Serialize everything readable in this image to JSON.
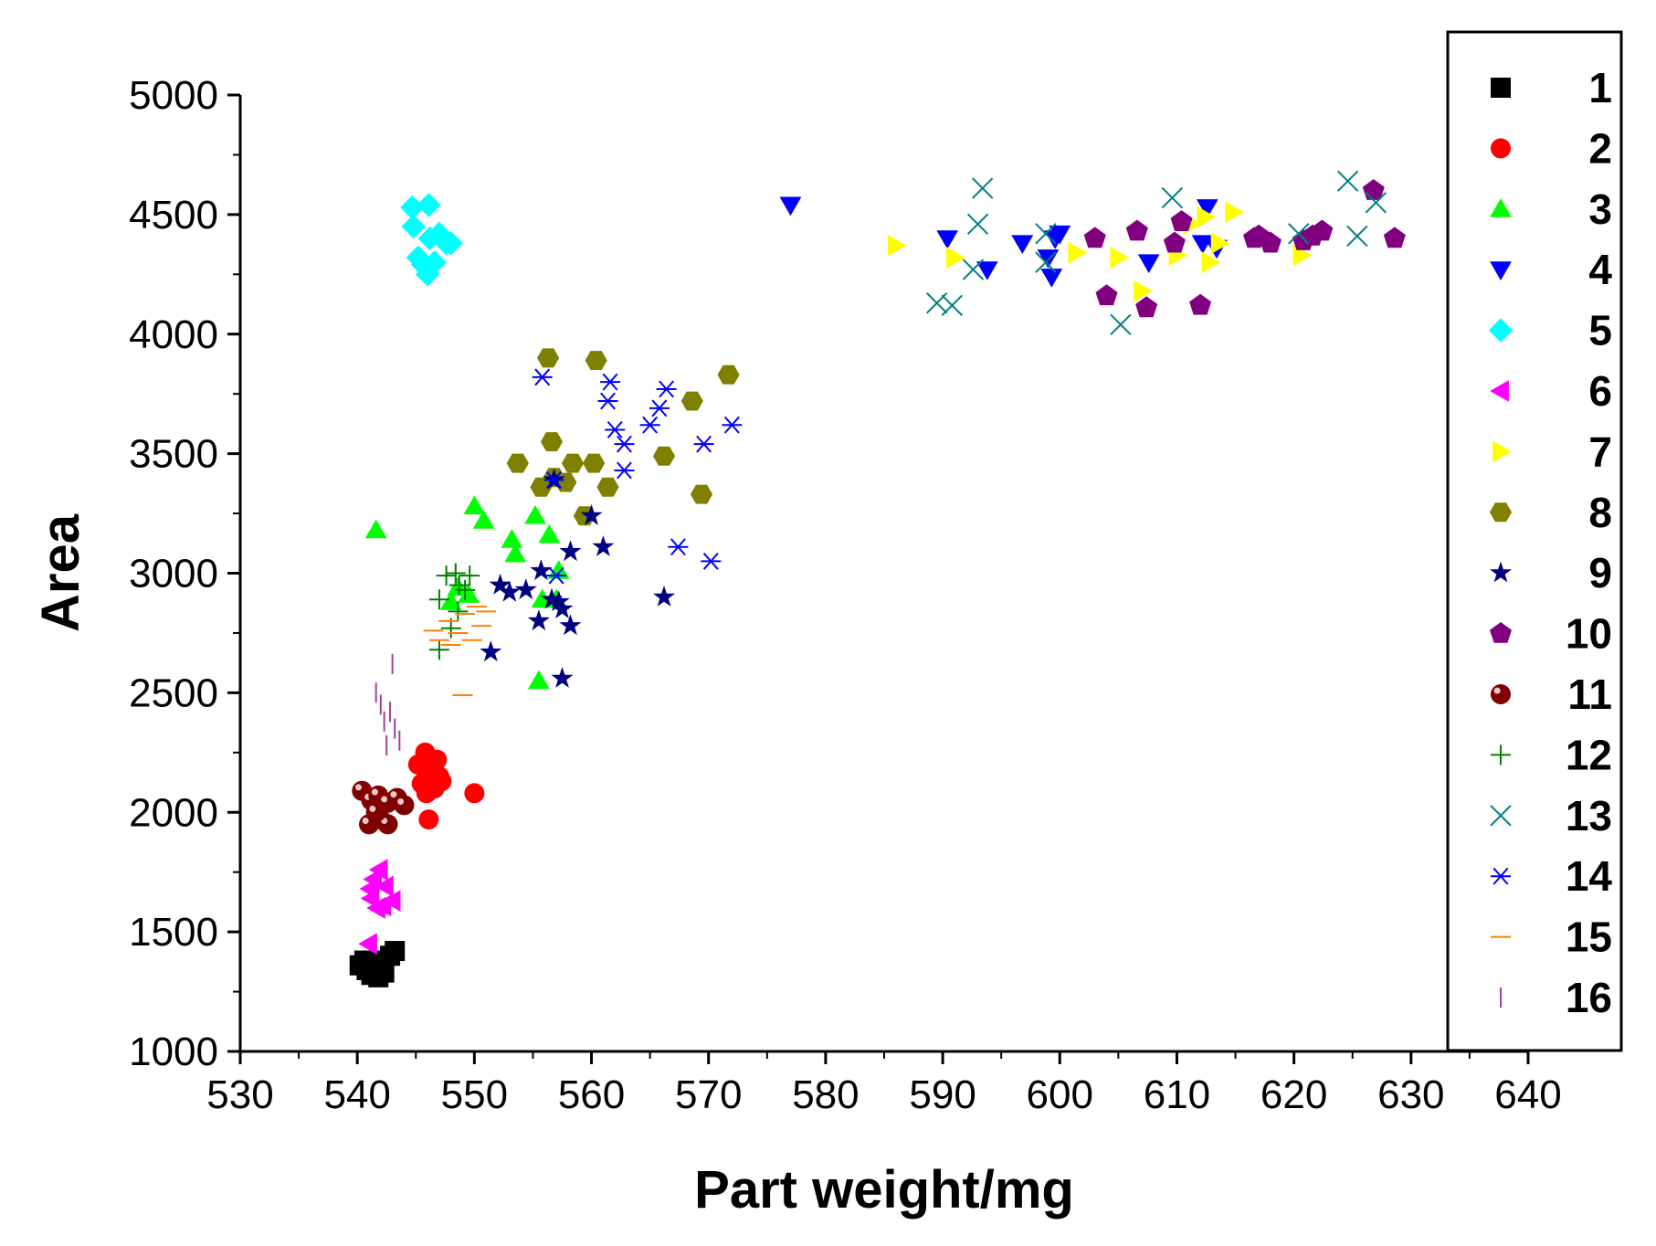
{
  "chart_data": {
    "type": "scatter",
    "title": "",
    "xlabel": "Part weight/mg",
    "ylabel": "Area",
    "xlim": [
      530,
      640
    ],
    "ylim": [
      1000,
      5000
    ],
    "xticks": [
      530,
      540,
      550,
      560,
      570,
      580,
      590,
      600,
      610,
      620,
      630,
      640
    ],
    "yticks": [
      1000,
      1500,
      2000,
      2500,
      3000,
      3500,
      4000,
      4500,
      5000
    ],
    "grid": false,
    "legend_position": "right",
    "series": [
      {
        "name": "1",
        "marker": "square",
        "color": "#000000",
        "points": [
          [
            540.2,
            1360
          ],
          [
            540.8,
            1340
          ],
          [
            541.2,
            1320
          ],
          [
            541.5,
            1380
          ],
          [
            541.8,
            1310
          ],
          [
            542.0,
            1350
          ],
          [
            542.3,
            1330
          ],
          [
            542.8,
            1400
          ],
          [
            543.2,
            1420
          ],
          [
            540.6,
            1380
          ]
        ]
      },
      {
        "name": "2",
        "marker": "circle",
        "color": "#ff0000",
        "points": [
          [
            545.2,
            2200
          ],
          [
            545.8,
            2250
          ],
          [
            546.3,
            2180
          ],
          [
            546.6,
            2100
          ],
          [
            546.0,
            2150
          ],
          [
            545.5,
            2120
          ],
          [
            547.2,
            2130
          ],
          [
            546.8,
            2220
          ],
          [
            545.9,
            2080
          ],
          [
            547.0,
            2150
          ],
          [
            546.1,
            1970
          ],
          [
            550.0,
            2080
          ]
        ]
      },
      {
        "name": "3",
        "marker": "triangle-up",
        "color": "#00ff00",
        "points": [
          [
            541.6,
            3180
          ],
          [
            550.0,
            3280
          ],
          [
            550.8,
            3220
          ],
          [
            553.2,
            3140
          ],
          [
            553.5,
            3080
          ],
          [
            555.2,
            3240
          ],
          [
            556.4,
            3160
          ],
          [
            548.0,
            2880
          ],
          [
            549.5,
            2910
          ],
          [
            555.8,
            2890
          ],
          [
            557.0,
            2890
          ],
          [
            557.2,
            3010
          ],
          [
            555.5,
            2550
          ],
          [
            548.6,
            2940
          ]
        ]
      },
      {
        "name": "4",
        "marker": "triangle-down",
        "color": "#0000ff",
        "points": [
          [
            577.0,
            4540
          ],
          [
            590.4,
            4400
          ],
          [
            593.8,
            4270
          ],
          [
            596.8,
            4380
          ],
          [
            599.0,
            4320
          ],
          [
            599.3,
            4240
          ],
          [
            600.0,
            4420
          ],
          [
            599.6,
            4400
          ],
          [
            607.6,
            4300
          ],
          [
            612.6,
            4530
          ],
          [
            612.2,
            4380
          ],
          [
            613.4,
            4360
          ]
        ]
      },
      {
        "name": "5",
        "marker": "diamond",
        "color": "#00ffff",
        "points": [
          [
            544.7,
            4530
          ],
          [
            546.1,
            4540
          ],
          [
            544.8,
            4450
          ],
          [
            546.2,
            4400
          ],
          [
            547.0,
            4420
          ],
          [
            545.2,
            4320
          ],
          [
            546.0,
            4250
          ],
          [
            546.6,
            4300
          ],
          [
            547.6,
            4380
          ],
          [
            548.0,
            4380
          ],
          [
            545.6,
            4290
          ]
        ]
      },
      {
        "name": "6",
        "marker": "triangle-left",
        "color": "#ff00ff",
        "points": [
          [
            541.4,
            1720
          ],
          [
            541.9,
            1760
          ],
          [
            542.4,
            1690
          ],
          [
            541.2,
            1640
          ],
          [
            542.2,
            1610
          ],
          [
            543.0,
            1630
          ],
          [
            541.7,
            1600
          ],
          [
            541.1,
            1680
          ],
          [
            541.0,
            1450
          ]
        ]
      },
      {
        "name": "7",
        "marker": "triangle-right",
        "color": "#ffff00",
        "points": [
          [
            586.0,
            4370
          ],
          [
            591.0,
            4320
          ],
          [
            601.4,
            4340
          ],
          [
            605.0,
            4320
          ],
          [
            607.0,
            4180
          ],
          [
            610.0,
            4330
          ],
          [
            611.2,
            4460
          ],
          [
            612.4,
            4490
          ],
          [
            612.8,
            4300
          ],
          [
            613.6,
            4380
          ],
          [
            614.8,
            4510
          ],
          [
            620.6,
            4330
          ]
        ]
      },
      {
        "name": "8",
        "marker": "hexagon",
        "color": "#7f7f00",
        "points": [
          [
            556.3,
            3900
          ],
          [
            560.4,
            3890
          ],
          [
            571.7,
            3830
          ],
          [
            568.6,
            3720
          ],
          [
            553.7,
            3460
          ],
          [
            556.6,
            3550
          ],
          [
            560.2,
            3460
          ],
          [
            566.2,
            3490
          ],
          [
            556.8,
            3400
          ],
          [
            558.4,
            3460
          ],
          [
            557.8,
            3380
          ],
          [
            555.7,
            3360
          ],
          [
            561.4,
            3360
          ],
          [
            559.4,
            3240
          ],
          [
            569.4,
            3330
          ]
        ]
      },
      {
        "name": "9",
        "marker": "star",
        "color": "#000080",
        "points": [
          [
            552.2,
            2950
          ],
          [
            553.0,
            2920
          ],
          [
            554.4,
            2930
          ],
          [
            555.5,
            2800
          ],
          [
            555.7,
            3010
          ],
          [
            556.6,
            2890
          ],
          [
            557.2,
            2880
          ],
          [
            557.5,
            2850
          ],
          [
            558.2,
            3090
          ],
          [
            558.2,
            2780
          ],
          [
            560.0,
            3240
          ],
          [
            561.0,
            3110
          ],
          [
            566.2,
            2900
          ],
          [
            551.4,
            2670
          ],
          [
            557.5,
            2560
          ],
          [
            556.8,
            3390
          ]
        ]
      },
      {
        "name": "10",
        "marker": "pentagon",
        "color": "#800080",
        "points": [
          [
            603.0,
            4400
          ],
          [
            606.6,
            4430
          ],
          [
            610.4,
            4470
          ],
          [
            609.8,
            4380
          ],
          [
            604.0,
            4160
          ],
          [
            607.4,
            4110
          ],
          [
            612.0,
            4120
          ],
          [
            616.6,
            4400
          ],
          [
            617.0,
            4410
          ],
          [
            618.0,
            4380
          ],
          [
            620.8,
            4390
          ],
          [
            621.6,
            4410
          ],
          [
            622.4,
            4430
          ],
          [
            626.8,
            4600
          ],
          [
            628.6,
            4400
          ]
        ]
      },
      {
        "name": "11",
        "marker": "sphere",
        "color": "#800000",
        "points": [
          [
            540.4,
            2090
          ],
          [
            541.2,
            2050
          ],
          [
            541.8,
            2070
          ],
          [
            542.6,
            2040
          ],
          [
            543.4,
            2060
          ],
          [
            544.0,
            2030
          ],
          [
            541.0,
            1950
          ],
          [
            542.0,
            1970
          ],
          [
            542.6,
            1950
          ],
          [
            541.6,
            2000
          ]
        ]
      },
      {
        "name": "12",
        "marker": "plus",
        "color": "#008000",
        "points": [
          [
            547.6,
            2990
          ],
          [
            548.4,
            3000
          ],
          [
            549.6,
            2990
          ],
          [
            548.7,
            2950
          ],
          [
            549.2,
            2930
          ],
          [
            547.0,
            2890
          ],
          [
            548.6,
            2840
          ],
          [
            547.0,
            2680
          ],
          [
            548.0,
            2770
          ]
        ]
      },
      {
        "name": "13",
        "marker": "x",
        "color": "#008080",
        "points": [
          [
            589.5,
            4130
          ],
          [
            590.8,
            4120
          ],
          [
            593.0,
            4460
          ],
          [
            593.4,
            4610
          ],
          [
            598.8,
            4300
          ],
          [
            598.8,
            4420
          ],
          [
            605.2,
            4040
          ],
          [
            609.6,
            4570
          ],
          [
            620.4,
            4420
          ],
          [
            624.6,
            4640
          ],
          [
            625.4,
            4410
          ],
          [
            627.0,
            4550
          ],
          [
            592.6,
            4270
          ]
        ]
      },
      {
        "name": "14",
        "marker": "asterisk",
        "color": "#0000ff",
        "points": [
          [
            555.8,
            3820
          ],
          [
            561.6,
            3800
          ],
          [
            561.4,
            3720
          ],
          [
            566.4,
            3770
          ],
          [
            565.8,
            3690
          ],
          [
            565.0,
            3620
          ],
          [
            572.0,
            3620
          ],
          [
            569.6,
            3540
          ],
          [
            562.8,
            3540
          ],
          [
            562.0,
            3600
          ],
          [
            562.8,
            3430
          ],
          [
            567.4,
            3110
          ],
          [
            570.2,
            3050
          ],
          [
            557.0,
            2990
          ],
          [
            556.8,
            3390
          ]
        ]
      },
      {
        "name": "15",
        "marker": "dash",
        "color": "#ff8000",
        "points": [
          [
            546.5,
            2760
          ],
          [
            547.0,
            2720
          ],
          [
            547.8,
            2800
          ],
          [
            548.6,
            2750
          ],
          [
            549.2,
            2830
          ],
          [
            549.8,
            2720
          ],
          [
            550.2,
            2860
          ],
          [
            551.0,
            2840
          ],
          [
            548.0,
            2700
          ],
          [
            549.0,
            2490
          ],
          [
            550.6,
            2780
          ]
        ]
      },
      {
        "name": "16",
        "marker": "vbar",
        "color": "#a040a0",
        "points": [
          [
            541.6,
            2500
          ],
          [
            542.0,
            2450
          ],
          [
            542.3,
            2380
          ],
          [
            542.8,
            2420
          ],
          [
            543.2,
            2350
          ],
          [
            543.6,
            2300
          ],
          [
            542.5,
            2280
          ],
          [
            543.0,
            2620
          ]
        ]
      }
    ]
  }
}
